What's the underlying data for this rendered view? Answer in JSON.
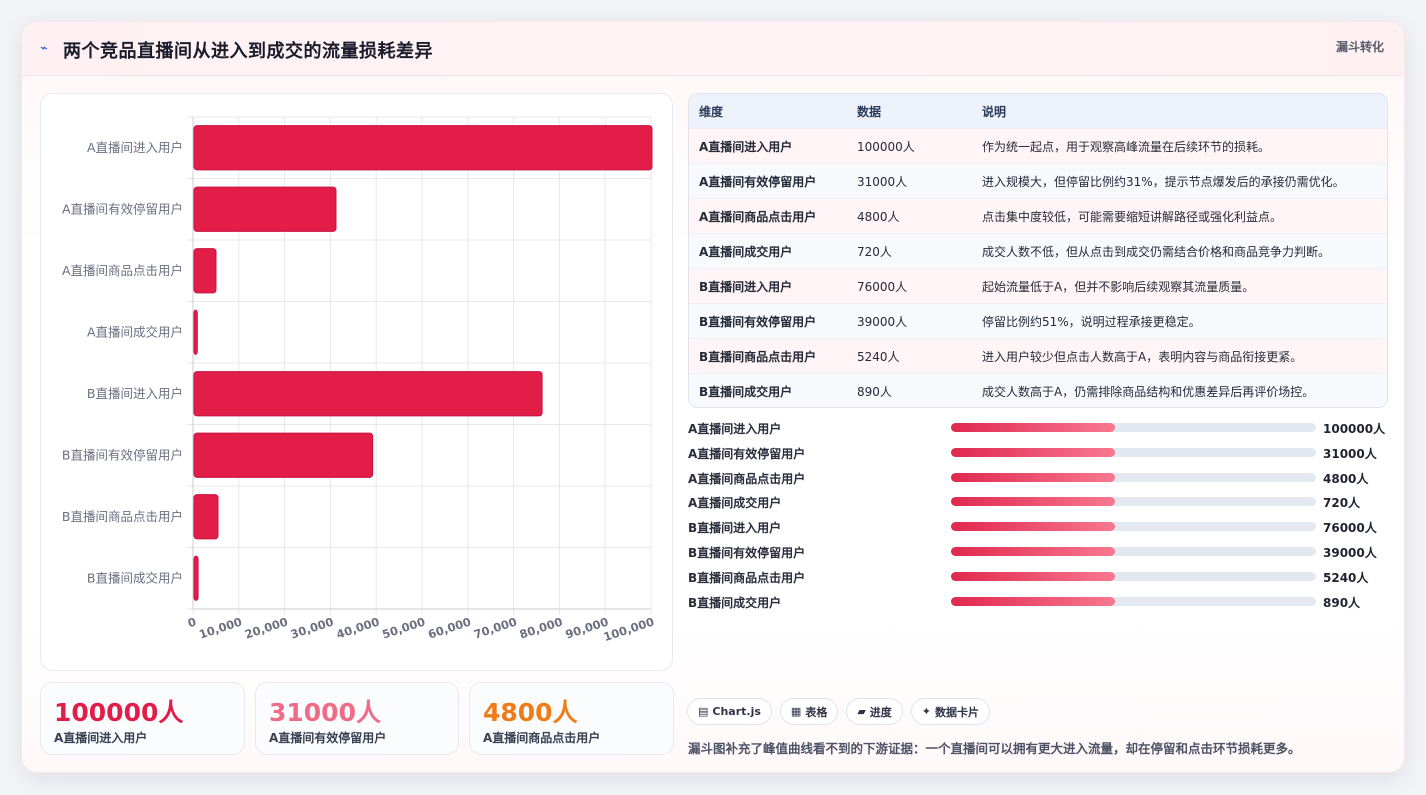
{
  "header": {
    "title": "两个竞品直播间从进入到成交的流量损耗差异",
    "tag": "漏斗转化",
    "icon": "pulse-icon"
  },
  "chart_data": {
    "type": "bar",
    "orientation": "horizontal",
    "categories": [
      "A直播间进入用户",
      "A直播间有效停留用户",
      "A直播间商品点击用户",
      "A直播间成交用户",
      "B直播间进入用户",
      "B直播间有效停留用户",
      "B直播间商品点击用户",
      "B直播间成交用户"
    ],
    "values": [
      100000,
      31000,
      4800,
      720,
      76000,
      39000,
      5240,
      890
    ],
    "xlim": [
      0,
      100000
    ],
    "xticks": [
      "0",
      "10,000",
      "20,000",
      "30,000",
      "40,000",
      "50,000",
      "60,000",
      "70,000",
      "80,000",
      "90,000",
      "100,000"
    ],
    "bar_color": "#e11d48",
    "grid": true
  },
  "table": {
    "headers": [
      "维度",
      "数据",
      "说明"
    ],
    "rows": [
      [
        "A直播间进入用户",
        "100000人",
        "作为统一起点，用于观察高峰流量在后续环节的损耗。"
      ],
      [
        "A直播间有效停留用户",
        "31000人",
        "进入规模大，但停留比例约31%，提示节点爆发后的承接仍需优化。"
      ],
      [
        "A直播间商品点击用户",
        "4800人",
        "点击集中度较低，可能需要缩短讲解路径或强化利益点。"
      ],
      [
        "A直播间成交用户",
        "720人",
        "成交人数不低，但从点击到成交仍需结合价格和商品竞争力判断。"
      ],
      [
        "B直播间进入用户",
        "76000人",
        "起始流量低于A，但并不影响后续观察其流量质量。"
      ],
      [
        "B直播间有效停留用户",
        "39000人",
        "停留比例约51%，说明过程承接更稳定。"
      ],
      [
        "B直播间商品点击用户",
        "5240人",
        "进入用户较少但点击人数高于A，表明内容与商品衔接更紧。"
      ],
      [
        "B直播间成交用户",
        "890人",
        "成交人数高于A，仍需排除商品结构和优惠差异后再评价场控。"
      ]
    ]
  },
  "progress": [
    {
      "label": "A直播间进入用户",
      "value": "100000人",
      "fill": 0.45
    },
    {
      "label": "A直播间有效停留用户",
      "value": "31000人",
      "fill": 0.45
    },
    {
      "label": "A直播间商品点击用户",
      "value": "4800人",
      "fill": 0.45
    },
    {
      "label": "A直播间成交用户",
      "value": "720人",
      "fill": 0.45
    },
    {
      "label": "B直播间进入用户",
      "value": "76000人",
      "fill": 0.45
    },
    {
      "label": "B直播间有效停留用户",
      "value": "39000人",
      "fill": 0.45
    },
    {
      "label": "B直播间商品点击用户",
      "value": "5240人",
      "fill": 0.45
    },
    {
      "label": "B直播间成交用户",
      "value": "890人",
      "fill": 0.45
    }
  ],
  "kpis": [
    {
      "value": "100000人",
      "label": "A直播间进入用户",
      "color": "#e11d48"
    },
    {
      "value": "31000人",
      "label": "A直播间有效停留用户",
      "color": "#f06b85"
    },
    {
      "value": "4800人",
      "label": "A直播间商品点击用户",
      "color": "#ef7c18"
    }
  ],
  "chips": [
    {
      "icon": "chart-icon",
      "glyph": "▤",
      "label": "Chart.js"
    },
    {
      "icon": "table-icon",
      "glyph": "▦",
      "label": "表格"
    },
    {
      "icon": "progress-icon",
      "glyph": "▰",
      "label": "进度"
    },
    {
      "icon": "sparkle-icon",
      "glyph": "✦",
      "label": "数据卡片"
    }
  ],
  "footnote": "漏斗图补充了峰值曲线看不到的下游证据：一个直播间可以拥有更大进入流量，却在停留和点击环节损耗更多。"
}
